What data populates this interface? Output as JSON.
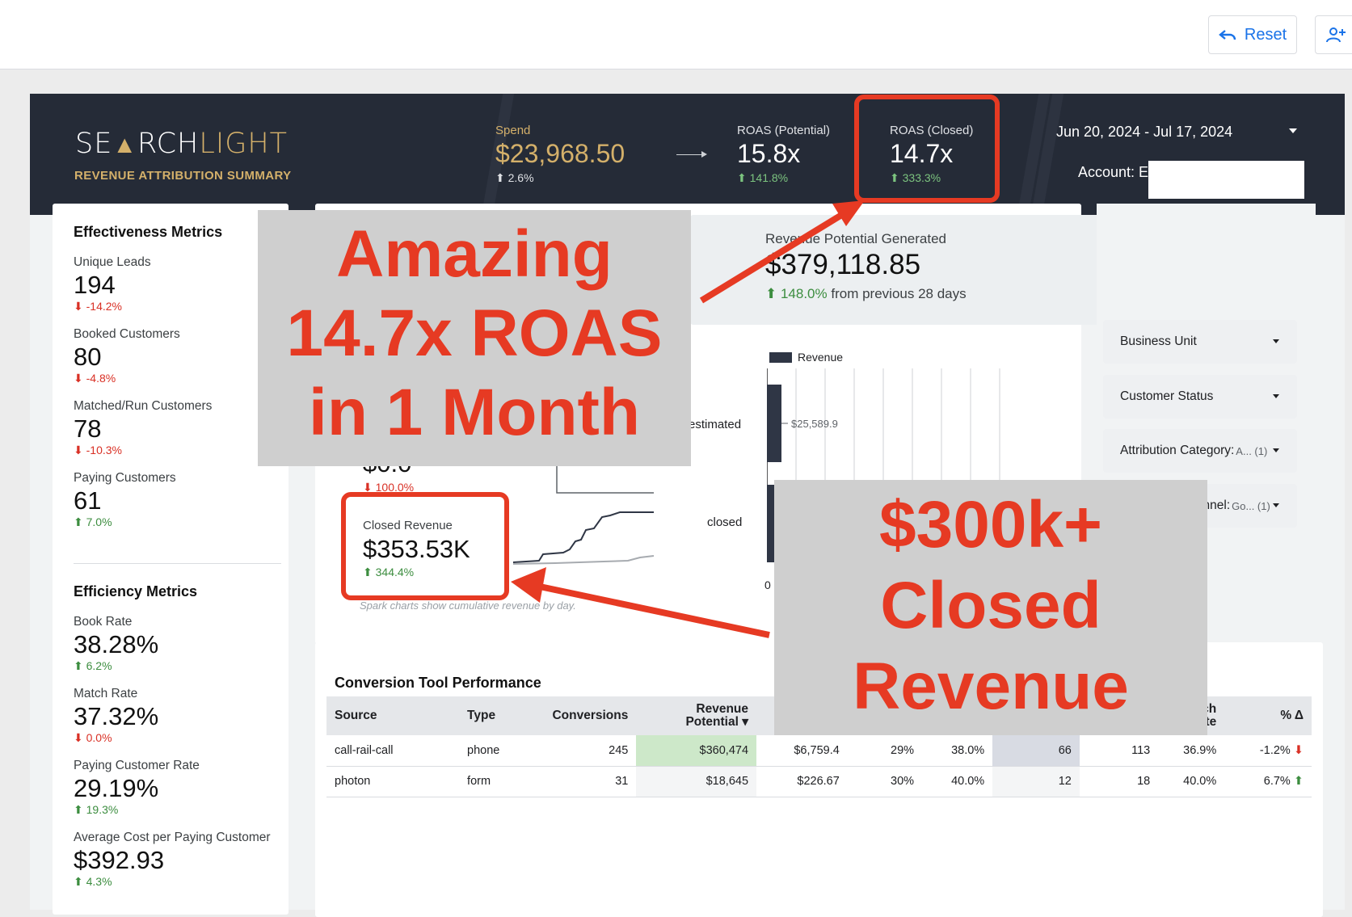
{
  "toolbar": {
    "reset_label": "Reset"
  },
  "header": {
    "logo_left": "SE",
    "logo_mid": "RCH",
    "logo_right": "LIGHT",
    "subtitle": "REVENUE ATTRIBUTION SUMMARY",
    "spend": {
      "label": "Spend",
      "value": "$23,968.50",
      "delta": "2.6%"
    },
    "roas_potential": {
      "label": "ROAS (Potential)",
      "value": "15.8x",
      "delta": "141.8%"
    },
    "roas_closed": {
      "label": "ROAS (Closed)",
      "value": "14.7x",
      "delta": "333.3%"
    },
    "date_range": "Jun 20, 2024 - Jul 17, 2024",
    "account_label": "Account: E"
  },
  "effectiveness": {
    "title": "Effectiveness Metrics",
    "metrics": [
      {
        "label": "Unique Leads",
        "value": "194",
        "delta": "-14.2%",
        "dir": "down"
      },
      {
        "label": "Booked Customers",
        "value": "80",
        "delta": "-4.8%",
        "dir": "down"
      },
      {
        "label": "Matched/Run Customers",
        "value": "78",
        "delta": "-10.3%",
        "dir": "down"
      },
      {
        "label": "Paying Customers",
        "value": "61",
        "delta": "7.0%",
        "dir": "up"
      }
    ]
  },
  "efficiency": {
    "title": "Efficiency Metrics",
    "metrics": [
      {
        "label": "Book Rate",
        "value": "38.28%",
        "delta": "6.2%",
        "dir": "up"
      },
      {
        "label": "Match Rate",
        "value": "37.32%",
        "delta": "0.0%",
        "dir": "down"
      },
      {
        "label": "Paying Customer Rate",
        "value": "29.19%",
        "delta": "19.3%",
        "dir": "up"
      },
      {
        "label": "Average Cost per Paying Customer",
        "value": "$392.93",
        "delta": "4.3%",
        "dir": "up"
      }
    ]
  },
  "revenue_potential": {
    "label": "Revenue Potential Generated",
    "value": "$379,118.85",
    "delta": "148.0%",
    "delta_suffix": "from previous 28 days"
  },
  "spark": {
    "partial_value": "$0.0",
    "partial_delta": "100.0%",
    "closed_label": "Closed Revenue",
    "closed_value": "$353.53K",
    "closed_delta": "344.4%",
    "note": "Spark charts show cumulative revenue by day."
  },
  "chart_data": {
    "type": "bar",
    "legend": [
      "Revenue"
    ],
    "categories": [
      "estimated",
      "closed"
    ],
    "visible_label": "$25,589.9",
    "x_axis_start": "0",
    "colors": {
      "bar": "#2f3645"
    }
  },
  "filters": [
    {
      "label": "Business Unit",
      "sub": ""
    },
    {
      "label": "Customer Status",
      "sub": ""
    },
    {
      "label": "Attribution Category:",
      "sub": "A...  (1)"
    },
    {
      "label": "Attribution Channel:",
      "sub": "Go...  (1)"
    }
  ],
  "table": {
    "title": "Conversion Tool Performance",
    "headers": {
      "source": "Source",
      "type": "Type",
      "conversions": "Conversions",
      "revenue_potential_1": "Revenue",
      "revenue_potential_2": "Potential",
      "match_rate_1": "ch",
      "match_rate_2": "te",
      "pct_delta": "% Δ"
    },
    "rows": [
      {
        "source": "call-rail-call",
        "type": "phone",
        "conversions": "245",
        "revenue_potential": "$360,474",
        "c5": "$6,759.4",
        "c6": "29%",
        "c7": "38.0%",
        "c8": "66",
        "c9": "113",
        "c10": "36.9%",
        "pct_delta": "-1.2%",
        "dir": "down"
      },
      {
        "source": "photon",
        "type": "form",
        "conversions": "31",
        "revenue_potential": "$18,645",
        "c5": "$226.67",
        "c6": "30%",
        "c7": "40.0%",
        "c8": "12",
        "c9": "18",
        "c10": "40.0%",
        "pct_delta": "6.7%",
        "dir": "up"
      }
    ]
  },
  "annotations": {
    "roas_callout": [
      "Amazing",
      "14.7x ROAS",
      "in 1 Month"
    ],
    "revenue_callout": [
      "$300k+",
      "Closed",
      "Revenue"
    ],
    "color": "#e63a23"
  }
}
